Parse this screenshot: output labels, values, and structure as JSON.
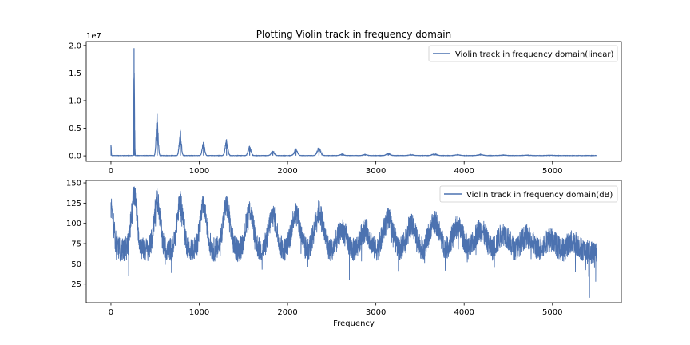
{
  "chart_data": [
    {
      "type": "line",
      "title": "Plotting Violin track in frequency domain",
      "xlabel": "",
      "ylabel": "",
      "y_offset_text": "1e7",
      "xlim": [
        0,
        5500
      ],
      "ylim": [
        0,
        20000000
      ],
      "xticks": [
        0,
        1000,
        2000,
        3000,
        4000,
        5000
      ],
      "yticks": [
        0,
        5000000,
        10000000,
        15000000,
        20000000
      ],
      "ytick_labels": [
        "0.0",
        "0.5",
        "1.0",
        "1.5",
        "2.0"
      ],
      "legend_position": "upper right",
      "color": "#4c72b0",
      "series": [
        {
          "name": "Violin track in frequency domain(linear)",
          "peaks": [
            {
              "f": 0,
              "amp": 2000000
            },
            {
              "f": 262,
              "amp": 19500000
            },
            {
              "f": 268,
              "amp": 5500000
            },
            {
              "f": 523,
              "amp": 7600000
            },
            {
              "f": 785,
              "amp": 4700000
            },
            {
              "f": 1047,
              "amp": 2500000
            },
            {
              "f": 1308,
              "amp": 3000000
            },
            {
              "f": 1570,
              "amp": 1800000
            },
            {
              "f": 1832,
              "amp": 900000
            },
            {
              "f": 2093,
              "amp": 1200000
            },
            {
              "f": 2355,
              "amp": 1500000
            },
            {
              "f": 2617,
              "amp": 250000
            },
            {
              "f": 2878,
              "amp": 200000
            },
            {
              "f": 3140,
              "amp": 350000
            },
            {
              "f": 3400,
              "amp": 150000
            },
            {
              "f": 3662,
              "amp": 300000
            },
            {
              "f": 3925,
              "amp": 150000
            },
            {
              "f": 4185,
              "amp": 200000
            },
            {
              "f": 4445,
              "amp": 100000
            },
            {
              "f": 4710,
              "amp": 80000
            },
            {
              "f": 4970,
              "amp": 60000
            }
          ]
        }
      ]
    },
    {
      "type": "line",
      "title": "",
      "xlabel": "Frequency",
      "ylabel": "",
      "xlim": [
        0,
        5500
      ],
      "ylim": [
        8,
        146
      ],
      "xticks": [
        0,
        1000,
        2000,
        3000,
        4000,
        5000
      ],
      "yticks": [
        25,
        50,
        75,
        100,
        125,
        150
      ],
      "legend_position": "upper right",
      "color": "#4c72b0",
      "series": [
        {
          "name": "Violin track in frequency domain(dB)",
          "peaks": [
            {
              "f": 0,
              "db": 126
            },
            {
              "f": 262,
              "db": 145
            },
            {
              "f": 523,
              "db": 137
            },
            {
              "f": 785,
              "db": 133
            },
            {
              "f": 1047,
              "db": 128
            },
            {
              "f": 1308,
              "db": 129
            },
            {
              "f": 1570,
              "db": 124
            },
            {
              "f": 1832,
              "db": 118
            },
            {
              "f": 2093,
              "db": 121
            },
            {
              "f": 2355,
              "db": 122
            },
            {
              "f": 2617,
              "db": 100
            },
            {
              "f": 2878,
              "db": 99
            },
            {
              "f": 3140,
              "db": 112
            },
            {
              "f": 3400,
              "db": 105
            },
            {
              "f": 3662,
              "db": 110
            },
            {
              "f": 3925,
              "db": 103
            },
            {
              "f": 4185,
              "db": 100
            },
            {
              "f": 4445,
              "db": 95
            },
            {
              "f": 4710,
              "db": 92
            },
            {
              "f": 4970,
              "db": 88
            },
            {
              "f": 5230,
              "db": 85
            }
          ],
          "floor_db": 68,
          "dips": [
            {
              "f": 200,
              "db": 35
            },
            {
              "f": 2700,
              "db": 30
            },
            {
              "f": 5260,
              "db": 40
            },
            {
              "f": 5420,
              "db": 8
            },
            {
              "f": 5490,
              "db": 28
            }
          ]
        }
      ]
    }
  ]
}
